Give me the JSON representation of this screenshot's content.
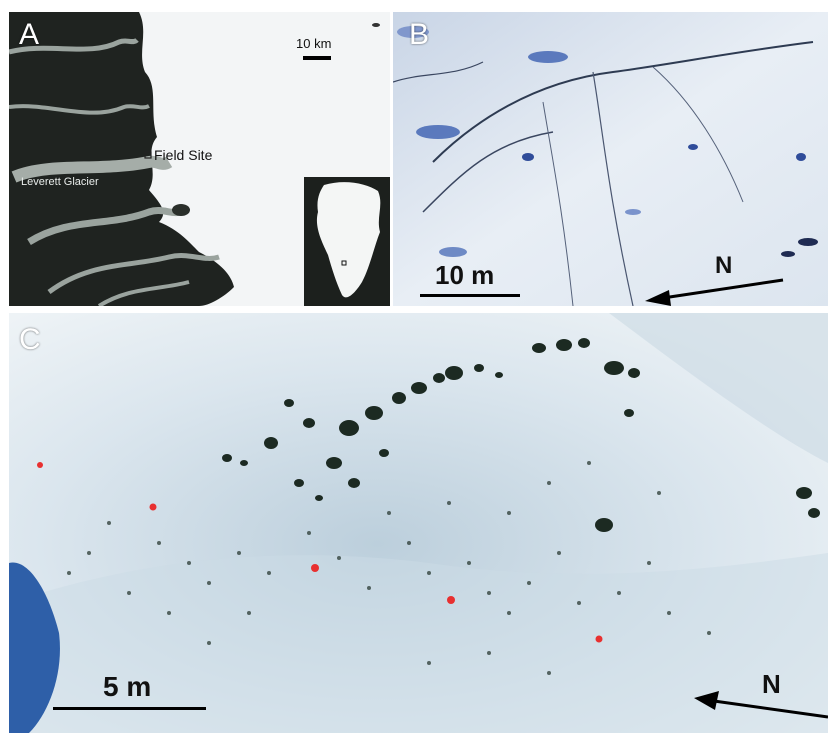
{
  "panels": {
    "a": {
      "letter": "A",
      "scale_label": "10 km",
      "site_label": "Field Site",
      "glacier_label": "Leverett Glacier",
      "inset_icon": "greenland-inset-map",
      "colors": {
        "rock": "#1f2320",
        "ice": "#f3f5f6",
        "river": "#8f9a94"
      }
    },
    "b": {
      "letter": "B",
      "scale_label": "10 m",
      "north_label": "N",
      "north_icon": "north-arrow",
      "colors": {
        "ice": "#dfe8f1",
        "crevasse": "#2b3a55",
        "pond": "#3b5fb0"
      }
    },
    "c": {
      "letter": "C",
      "scale_label": "5 m",
      "north_label": "N",
      "north_icon": "north-arrow",
      "colors": {
        "ice": "#e6eff4",
        "shadow": "#9fb7c7",
        "hole": "#1c2a22",
        "lake": "#2e5fa8",
        "marker": "#e83030"
      },
      "marker_count": 5
    }
  }
}
